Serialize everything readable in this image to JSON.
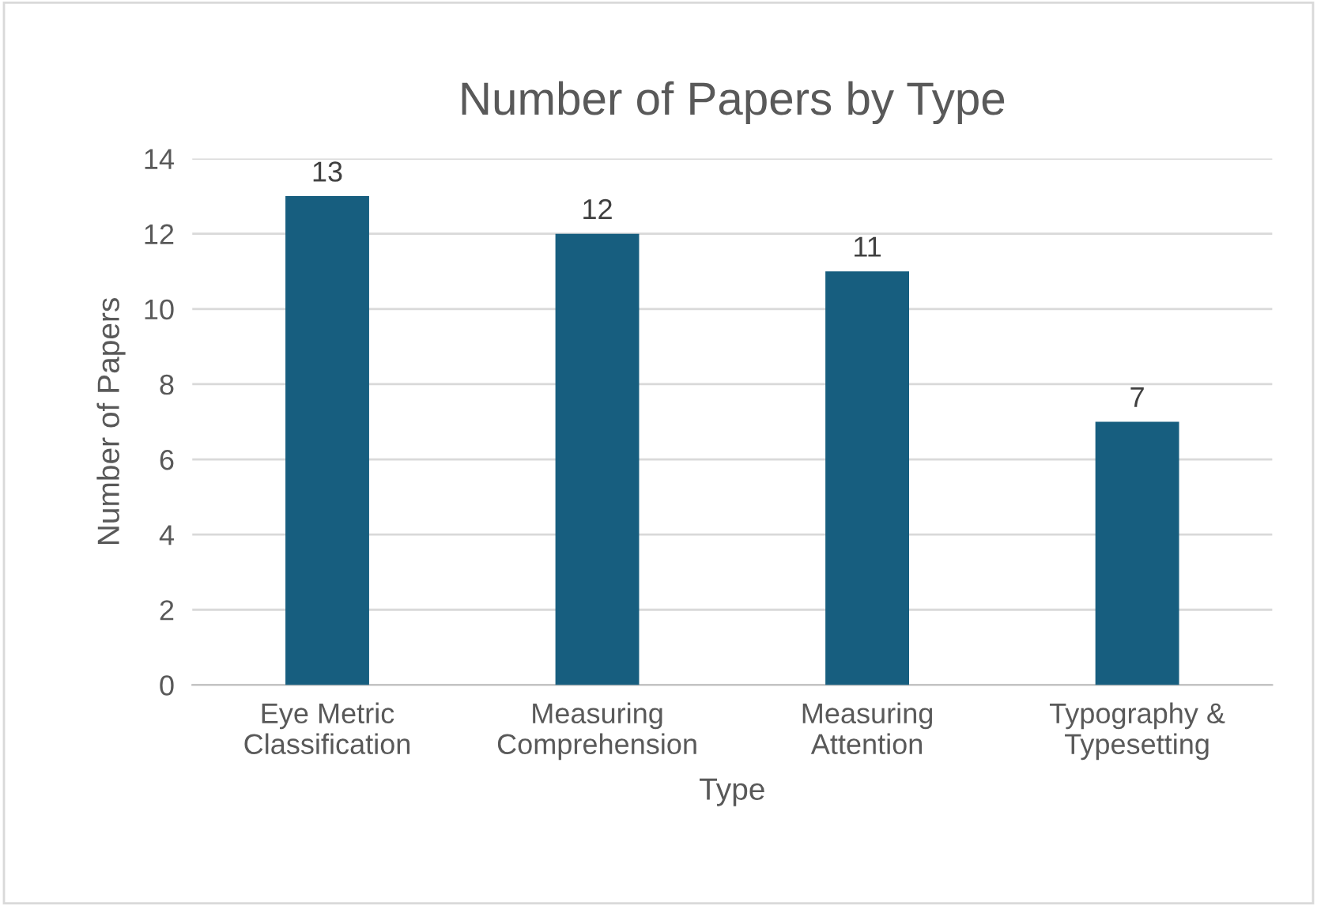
{
  "chart_data": {
    "type": "bar",
    "title": "Number of Papers by Type",
    "xlabel": "Type",
    "ylabel": "Number of Papers",
    "categories": [
      "Eye Metric\nClassification",
      "Measuring\nComprehension",
      "Measuring\nAttention",
      "Typography &\nTypesetting"
    ],
    "values": [
      13,
      12,
      11,
      7
    ],
    "color": "#175e7f",
    "ylim": [
      0,
      14
    ],
    "yticks": [
      0,
      2,
      4,
      6,
      8,
      10,
      12,
      14
    ],
    "grid": "y",
    "data_labels": true,
    "legend": false
  }
}
